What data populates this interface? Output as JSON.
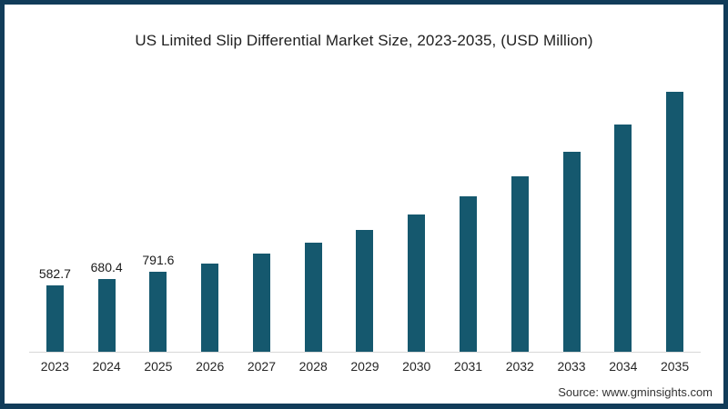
{
  "frame": {
    "border_color": "#113C59",
    "background": "#FFFFFF"
  },
  "chart_data": {
    "type": "bar",
    "title": "US Limited Slip Differential Market Size, 2023-2035, (USD Million)",
    "categories": [
      "2023",
      "2024",
      "2025",
      "2026",
      "2027",
      "2028",
      "2029",
      "2030",
      "2031",
      "2032",
      "2033",
      "2034",
      "2035"
    ],
    "values": [
      582.7,
      680.4,
      791.6,
      920.9,
      1071.4,
      1246.5,
      1450.2,
      1687.2,
      1962.9,
      2283.6,
      2656.7,
      3090.8,
      3595.8
    ],
    "bar_labels": [
      "582.7",
      "680.4",
      "791.6",
      "",
      "",
      "",
      "",
      "",
      "",
      "",
      "",
      "",
      ""
    ],
    "unit": "USD Million",
    "xlabel": "",
    "ylabel": "",
    "ylim": [
      -450,
      3650
    ],
    "grid": false,
    "legend": false,
    "bar_color": "#15586E",
    "axis_line_color": "#D8D8D8"
  },
  "source": {
    "label": "Source: www.gminsights.com"
  }
}
